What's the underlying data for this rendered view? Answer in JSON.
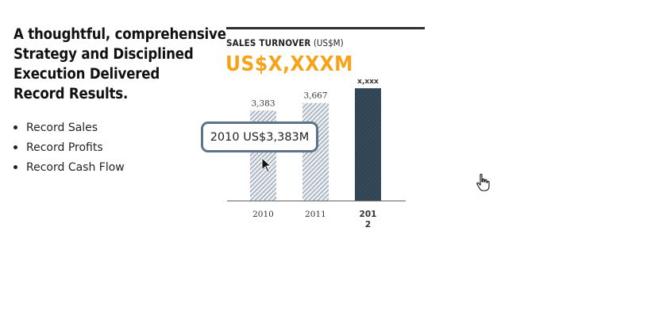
{
  "headline": {
    "lines": [
      "A thoughtful, comprehensive",
      "Strategy and Disciplined",
      "Execution Delivered",
      "Record Results."
    ]
  },
  "bullets": [
    "Record Sales",
    "Record Profits",
    "Record Cash Flow"
  ],
  "chart_label": {
    "title": "SALES TURNOVER",
    "unit": "(US$M)"
  },
  "big_value": "US$X,XXXM",
  "tooltip": {
    "text": "2010 US$3,383M"
  },
  "colors": {
    "accent": "#f5a31c",
    "bar_dark": "#34495a",
    "tooltip_border": "#5e7387",
    "hatch": "#6e7f90"
  },
  "icons": {
    "arrow_cursor": "arrow-pointer",
    "hand_cursor": "hand-pointer"
  },
  "chart_data": {
    "type": "bar",
    "categories": [
      "2010",
      "2011",
      "2012"
    ],
    "category_labels": [
      [
        "2010"
      ],
      [
        "2011"
      ],
      [
        "201",
        "2"
      ]
    ],
    "values": [
      3383,
      3667,
      4220
    ],
    "data_labels": [
      "3,383",
      "3,667",
      "x,xxx"
    ],
    "highlight": "2012",
    "title": "SALES TURNOVER (US$M)",
    "xlabel": "",
    "ylabel": "",
    "ylim": [
      0,
      4700
    ],
    "grid": false,
    "legend": "none"
  }
}
